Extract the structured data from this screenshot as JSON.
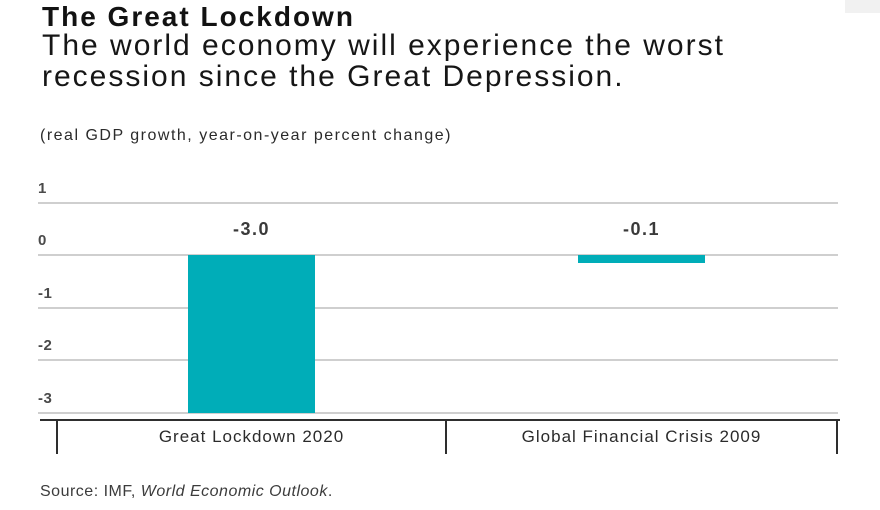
{
  "header": {
    "title": "The Great Lockdown",
    "subtitle": "The world economy will experience the worst recession since the Great Depression.",
    "note": "(real GDP growth, year-on-year percent change)"
  },
  "chart_data": {
    "type": "bar",
    "title": "The Great Lockdown",
    "subtitle": "The world economy will experience the worst recession since the Great Depression.",
    "axis_note": "(real GDP growth, year-on-year percent change)",
    "categories": [
      "Great Lockdown 2020",
      "Global Financial Crisis 2009"
    ],
    "values": [
      -3.0,
      -0.1
    ],
    "value_labels": [
      "-3.0",
      "-0.1"
    ],
    "yticks": [
      1,
      0,
      -1,
      -2,
      -3
    ],
    "ylim": [
      -3.3,
      1
    ],
    "xlabel": "",
    "ylabel": "",
    "grid": "horizontal",
    "legend": "none",
    "bar_color": "#00adb8",
    "gridline_color": "#cfcfcf",
    "axis_color": "#2e2e2e"
  },
  "source": {
    "prefix": "Source: IMF, ",
    "italic": "World Economic Outlook",
    "suffix": "."
  }
}
